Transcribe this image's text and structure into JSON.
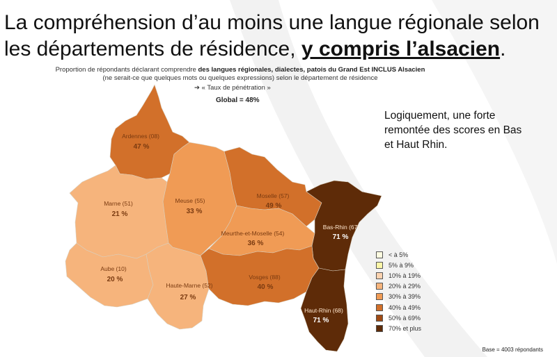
{
  "title": {
    "part1": "La compréhension d’au moins une langue régionale selon",
    "part2": "les départements de résidence, ",
    "emphasis": "y compris l’alsacien",
    "end": "."
  },
  "subtitle": {
    "line1_prefix": "Proportion de répondants déclarant comprendre ",
    "line1_bold": "des langues régionales, dialectes, patois du Grand Est INCLUS Alsacien",
    "line2": "(ne serait-ce que quelques mots ou quelques expressions) selon le département de résidence",
    "rate_arrow": "➔",
    "rate_label": "« Taux de pénétration »"
  },
  "global": "Global = 48%",
  "note": "Logiquement, une forte remontée des scores en Bas et Haut Rhin.",
  "departments": [
    {
      "name": "Ardennes (08)",
      "value": "47 %",
      "color": "#d2702a"
    },
    {
      "name": "Marne (51)",
      "value": "21 %",
      "color": "#f6b47c"
    },
    {
      "name": "Meuse (55)",
      "value": "33 %",
      "color": "#f09b55"
    },
    {
      "name": "Moselle (57)",
      "value": "49 %",
      "color": "#d2702a"
    },
    {
      "name": "Meurthe-et-Moselle (54)",
      "value": "36 %",
      "color": "#f09b55"
    },
    {
      "name": "Bas-Rhin (67)",
      "value": "71 %",
      "color": "#5e2b08"
    },
    {
      "name": "Aube (10)",
      "value": "20 %",
      "color": "#f6b47c"
    },
    {
      "name": "Haute-Marne (52)",
      "value": "27 %",
      "color": "#f6b47c"
    },
    {
      "name": "Vosges (88)",
      "value": "40 %",
      "color": "#d2702a"
    },
    {
      "name": "Haut-Rhin (68)",
      "value": "71 %",
      "color": "#5e2b08"
    }
  ],
  "legend": [
    {
      "label": "< à 5%",
      "color": "#fdfbe0"
    },
    {
      "label": "5% à 9%",
      "color": "#fbf6a8"
    },
    {
      "label": "10% à 19%",
      "color": "#fbd3b0"
    },
    {
      "label": "20% à 29%",
      "color": "#f6b47c"
    },
    {
      "label": "30% à 39%",
      "color": "#f09b55"
    },
    {
      "label": "40% à 49%",
      "color": "#d2702a"
    },
    {
      "label": "50% à 69%",
      "color": "#a04a14"
    },
    {
      "label": "70% et plus",
      "color": "#5e2b08"
    }
  ],
  "base": "Base = 4003 répondants"
}
